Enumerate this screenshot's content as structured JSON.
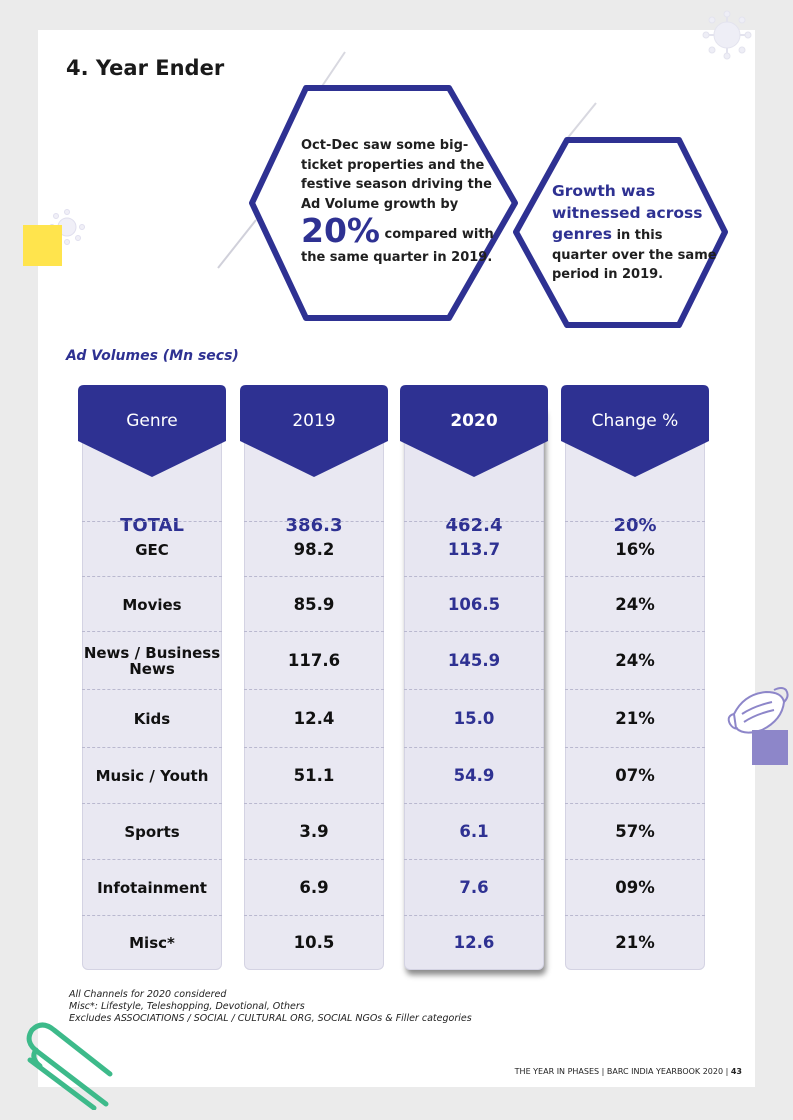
{
  "page": {
    "title": "4. Year Ender",
    "subtitle": "Ad Volumes (Mn secs)"
  },
  "callout1": {
    "text_before": "Oct-Dec saw some big-ticket properties and the festive season driving the Ad Volume growth by",
    "big": "20%",
    "text_after": "compared with the same quarter in 2019."
  },
  "callout2": {
    "highlight": "Growth was witnessed across genres",
    "text": "in this quarter over the same period in 2019."
  },
  "table": {
    "headers": [
      "Genre",
      "2019",
      "2020",
      "Change %"
    ],
    "rows": [
      {
        "genre": "TOTAL",
        "y2019": "386.3",
        "y2020": "462.4",
        "change": "20%"
      },
      {
        "genre": "GEC",
        "y2019": "98.2",
        "y2020": "113.7",
        "change": "16%"
      },
      {
        "genre": "Movies",
        "y2019": "85.9",
        "y2020": "106.5",
        "change": "24%"
      },
      {
        "genre": "News / Business News",
        "y2019": "117.6",
        "y2020": "145.9",
        "change": "24%"
      },
      {
        "genre": "Kids",
        "y2019": "12.4",
        "y2020": "15.0",
        "change": "21%"
      },
      {
        "genre": "Music / Youth",
        "y2019": "51.1",
        "y2020": "54.9",
        "change": "07%"
      },
      {
        "genre": "Sports",
        "y2019": "3.9",
        "y2020": "6.1",
        "change": "57%"
      },
      {
        "genre": "Infotainment",
        "y2019": "6.9",
        "y2020": "7.6",
        "change": "09%"
      },
      {
        "genre": "Misc*",
        "y2019": "10.5",
        "y2020": "12.6",
        "change": "21%"
      }
    ]
  },
  "notes": [
    "All Channels for 2020 considered",
    "Misc*: Lifestyle, Teleshopping, Devotional, Others",
    "Excludes ASSOCIATIONS / SOCIAL / CULTURAL ORG, SOCIAL NGOs & Filler categories"
  ],
  "footer": {
    "text": "THE YEAR IN PHASES | BARC INDIA YEARBOOK 2020 |",
    "page_number": "43"
  },
  "colors": {
    "accent": "#2e3192",
    "yellow": "#ffe44d",
    "purple": "#8d86c9",
    "green": "#3dba8a"
  },
  "icons": [
    "virus-icon",
    "face-mask-icon",
    "paperclip-icon"
  ]
}
